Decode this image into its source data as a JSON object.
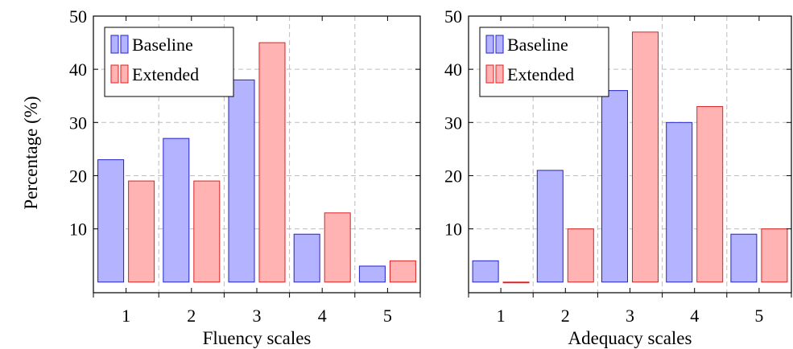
{
  "chart_data": [
    {
      "type": "bar",
      "categories": [
        "1",
        "2",
        "3",
        "4",
        "5"
      ],
      "series": [
        {
          "name": "Baseline",
          "values": [
            23,
            27,
            38,
            9,
            3
          ],
          "fill": "#b3b3ff",
          "stroke": "#2222cc"
        },
        {
          "name": "Extended",
          "values": [
            19,
            19,
            45,
            13,
            4
          ],
          "fill": "#ffb3b3",
          "stroke": "#dd2222"
        }
      ],
      "xlabel": "Fluency scales",
      "ylabel": "Percentage (%)",
      "ylim": [
        -2,
        50
      ],
      "yticks": [
        10,
        20,
        30,
        40,
        50
      ],
      "grid": true,
      "legend": "top-left"
    },
    {
      "type": "bar",
      "categories": [
        "1",
        "2",
        "3",
        "4",
        "5"
      ],
      "series": [
        {
          "name": "Baseline",
          "values": [
            4,
            21,
            36,
            30,
            9
          ],
          "fill": "#b3b3ff",
          "stroke": "#2222cc"
        },
        {
          "name": "Extended",
          "values": [
            0,
            10,
            47,
            33,
            10
          ],
          "fill": "#ffb3b3",
          "stroke": "#dd2222"
        }
      ],
      "xlabel": "Adequacy scales",
      "ylabel": "",
      "ylim": [
        -2,
        50
      ],
      "yticks": [
        10,
        20,
        30,
        40,
        50
      ],
      "grid": true,
      "legend": "top-left"
    }
  ]
}
